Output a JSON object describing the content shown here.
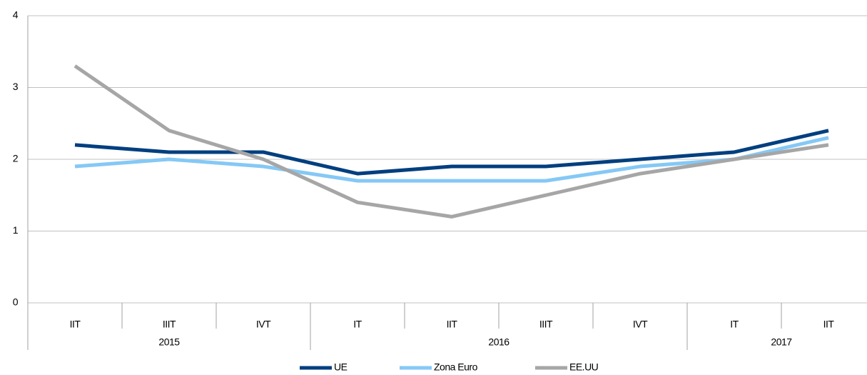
{
  "chart_data": {
    "type": "line",
    "categories": [
      "IIT",
      "IIIT",
      "IVT",
      "IT",
      "IIT",
      "IIIT",
      "IVT",
      "IT",
      "IIT"
    ],
    "groups": [
      {
        "label": "2015",
        "size": 3
      },
      {
        "label": "2016",
        "size": 4
      },
      {
        "label": "2017",
        "size": 2
      }
    ],
    "series": [
      {
        "name": "UE",
        "color": "#003f7f",
        "values": [
          2.2,
          2.1,
          2.1,
          1.8,
          1.9,
          1.9,
          2.0,
          2.1,
          2.4
        ]
      },
      {
        "name": "Zona Euro",
        "color": "#85c8f5",
        "values": [
          1.9,
          2.0,
          1.9,
          1.7,
          1.7,
          1.7,
          1.9,
          2.0,
          2.3
        ]
      },
      {
        "name": "EE.UU",
        "color": "#a6a6a6",
        "values": [
          3.3,
          2.4,
          2.0,
          1.4,
          1.2,
          1.5,
          1.8,
          2.0,
          2.2
        ]
      }
    ],
    "ylim": [
      0,
      4
    ],
    "yticks": [
      0,
      1,
      2,
      3,
      4
    ],
    "grid": true,
    "legend": "bottom"
  }
}
